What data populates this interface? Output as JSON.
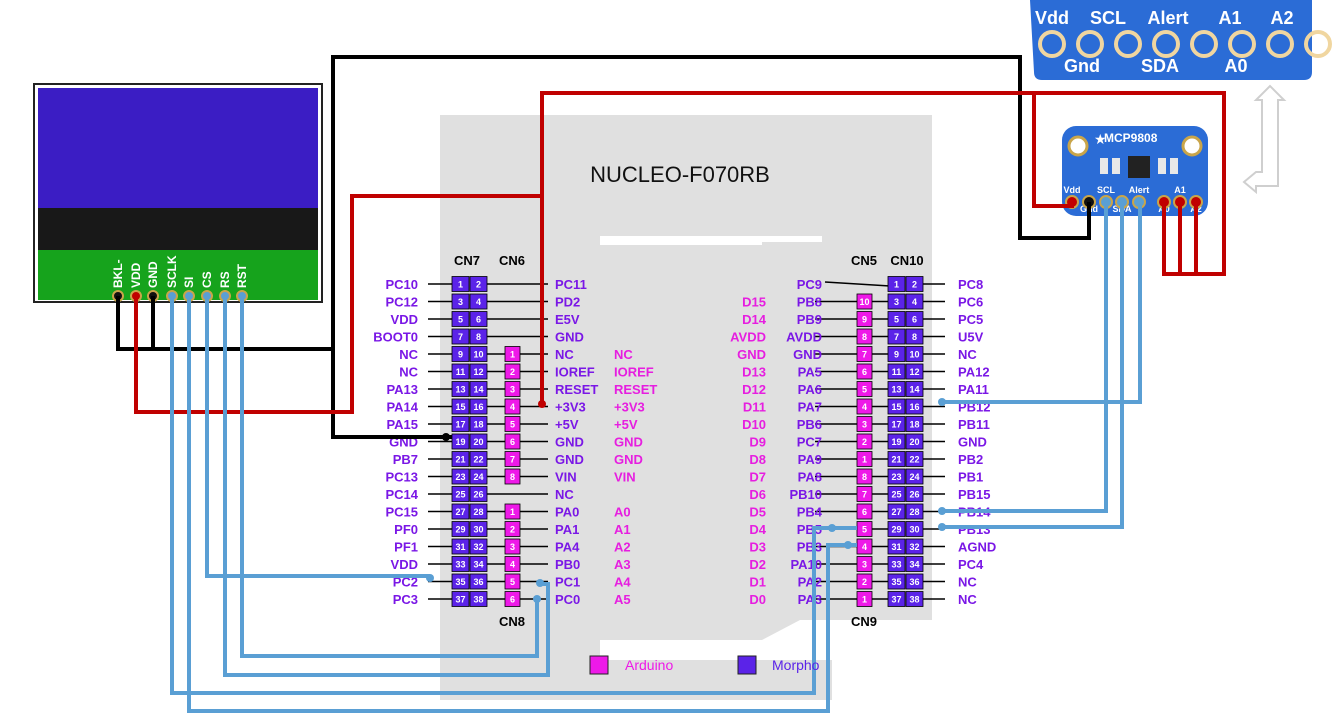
{
  "board": {
    "title": "NUCLEO-F070RB",
    "headers": {
      "cn7": "CN7",
      "cn6": "CN6",
      "cn8": "CN8",
      "cn5": "CN5",
      "cn10": "CN10",
      "cn9": "CN9"
    }
  },
  "cn7_left": [
    "PC10",
    "PC12",
    "VDD",
    "BOOT0",
    "NC",
    "NC",
    "PA13",
    "PA14",
    "PA15",
    "GND",
    "PB7",
    "PC13",
    "PC14",
    "PC15",
    "PF0",
    "PF1",
    "VDD",
    "PC2",
    "PC3"
  ],
  "cn7_right": [
    "PC11",
    "PD2",
    "E5V",
    "GND",
    "NC",
    "IOREF",
    "RESET",
    "+3V3",
    "+5V",
    "GND",
    "GND",
    "VIN",
    "NC",
    "PA0",
    "PA1",
    "PA4",
    "PB0",
    "PC1",
    "PC0"
  ],
  "arduino_left": [
    "NC",
    "IOREF",
    "RESET",
    "+3V3",
    "+5V",
    "GND",
    "GND",
    "VIN",
    "A0",
    "A1",
    "A2",
    "A3",
    "A4",
    "A5"
  ],
  "cn10_right": [
    "PC8",
    "PC6",
    "PC5",
    "U5V",
    "NC",
    "PA12",
    "PA11",
    "PB12",
    "PB11",
    "GND",
    "PB2",
    "PB1",
    "PB15",
    "PB14",
    "PB13",
    "AGND",
    "PC4",
    "NC",
    "NC"
  ],
  "cn10_left": [
    "PC9",
    "PB8",
    "PB9",
    "AVDD",
    "GND",
    "PA5",
    "PA6",
    "PA7",
    "PB6",
    "PC7",
    "PA9",
    "PA8",
    "PB10",
    "PB4",
    "PB5",
    "PB3",
    "PA10",
    "PA2",
    "PA3"
  ],
  "arduino_right": [
    "D15",
    "D14",
    "AVDD",
    "GND",
    "D13",
    "D12",
    "D11",
    "D10",
    "D9",
    "D8",
    "D7",
    "D6",
    "D5",
    "D4",
    "D3",
    "D2",
    "D1",
    "D0"
  ],
  "cn7_pins": [
    "1",
    "2",
    "3",
    "4",
    "5",
    "6",
    "7",
    "8",
    "9",
    "10",
    "11",
    "12",
    "13",
    "14",
    "15",
    "16",
    "17",
    "18",
    "19",
    "20",
    "21",
    "22",
    "23",
    "24",
    "25",
    "26",
    "27",
    "28",
    "29",
    "30",
    "31",
    "32",
    "33",
    "34",
    "35",
    "36",
    "37",
    "38"
  ],
  "cn6_pins": [
    "1",
    "2",
    "3",
    "4",
    "5",
    "6",
    "7",
    "8"
  ],
  "cn8_pins": [
    "1",
    "2",
    "3",
    "4",
    "5",
    "6"
  ],
  "cn5_pins": [
    "10",
    "9",
    "8",
    "7",
    "6",
    "5",
    "4",
    "3",
    "2",
    "1"
  ],
  "cn9_pins": [
    "8",
    "7",
    "6",
    "5",
    "4",
    "3",
    "2",
    "1"
  ],
  "lcd": {
    "pins": [
      "BKL-",
      "VDD",
      "GND",
      "SCLK",
      "SI",
      "CS",
      "RS",
      "RST"
    ]
  },
  "sensor": {
    "name": "MCP9808",
    "pins": [
      "Vdd",
      "Gnd",
      "SCL",
      "SDA",
      "Alert",
      "A0",
      "A1",
      "A2"
    ]
  },
  "sensor_zoom": {
    "top": [
      "Vdd",
      "SCL",
      "Alert",
      "A1",
      "A2"
    ],
    "bottom": [
      "Gnd",
      "SDA",
      "A0"
    ]
  },
  "legend": {
    "arduino": "Arduino",
    "morpho": "Morpho"
  },
  "colors": {
    "morpho": "#5b23e8",
    "arduino": "#ee19e8",
    "morpho_text": "#7a17e6",
    "arduino_text": "#e61ee0",
    "wire_black": "#000000",
    "wire_red": "#c00000",
    "wire_blue": "#5a9fd4",
    "lcd_screen": "#3b1dc4",
    "lcd_band": "#181818",
    "lcd_pcb": "#16a31c",
    "sensor_pcb": "#2b6cd6",
    "board_bg": "#e0e0e0"
  }
}
